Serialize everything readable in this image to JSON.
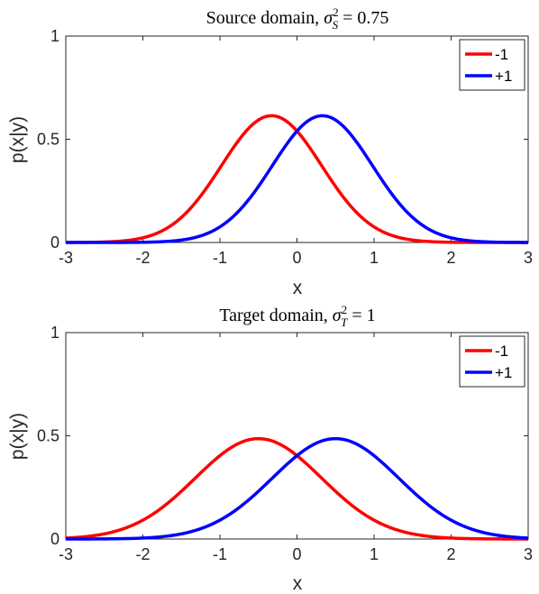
{
  "chart_data": [
    {
      "type": "line",
      "title": "Source domain, σ²_S = 0.75",
      "title_parts": {
        "prefix": "Source domain, ",
        "sym": "σ",
        "sup": "2",
        "sub": "S",
        "suffix": " = 0.75"
      },
      "xlabel": "x",
      "ylabel": "p(x|y)",
      "xlim": [
        -3,
        3
      ],
      "ylim": [
        0,
        1
      ],
      "xticks": [
        "-3",
        "-2",
        "-1",
        "0",
        "1",
        "2",
        "3"
      ],
      "yticks": [
        "0",
        "0.5",
        "1"
      ],
      "legend_position": "top-right",
      "x": [
        -3,
        -2.5,
        -2,
        -1.5,
        -1,
        -0.5,
        -0.33,
        0,
        0.33,
        0.5,
        1,
        1.5,
        2,
        2.5,
        3
      ],
      "series": [
        {
          "name": "-1",
          "color": "#ff0000",
          "values": [
            0.0005,
            0.006,
            0.032,
            0.144,
            0.372,
            0.596,
            0.614,
            0.565,
            0.409,
            0.321,
            0.102,
            0.019,
            0.002,
            0.0001,
            0.0
          ]
        },
        {
          "name": "+1",
          "color": "#0000ff",
          "values": [
            0.0,
            0.0001,
            0.002,
            0.019,
            0.102,
            0.321,
            0.409,
            0.565,
            0.614,
            0.596,
            0.372,
            0.144,
            0.032,
            0.006,
            0.0005
          ]
        }
      ]
    },
    {
      "type": "line",
      "title": "Target domain, σ²_T = 1",
      "title_parts": {
        "prefix": "Target domain, ",
        "sym": "σ",
        "sup": "2",
        "sub": "T",
        "suffix": " = 1"
      },
      "xlabel": "x",
      "ylabel": "p(x|y)",
      "xlim": [
        -3,
        3
      ],
      "ylim": [
        0,
        1
      ],
      "xticks": [
        "-3",
        "-2",
        "-1",
        "0",
        "1",
        "2",
        "3"
      ],
      "yticks": [
        "0",
        "0.5",
        "1"
      ],
      "legend_position": "top-right",
      "x": [
        -3,
        -2.5,
        -2,
        -1.5,
        -1,
        -0.5,
        0,
        0.5,
        1,
        1.5,
        2,
        2.5,
        3
      ],
      "series": [
        {
          "name": "-1",
          "color": "#ff0000",
          "values": [
            0.0108,
            0.043,
            0.1245,
            0.2601,
            0.3917,
            0.4863,
            0.3972,
            0.2134,
            0.0831,
            0.022,
            0.004,
            0.0005,
            0.0
          ]
        },
        {
          "name": "+1",
          "color": "#0000ff",
          "values": [
            0.0,
            0.0005,
            0.004,
            0.022,
            0.0831,
            0.2134,
            0.3972,
            0.4863,
            0.3917,
            0.2601,
            0.1245,
            0.043,
            0.0108
          ]
        }
      ]
    }
  ]
}
